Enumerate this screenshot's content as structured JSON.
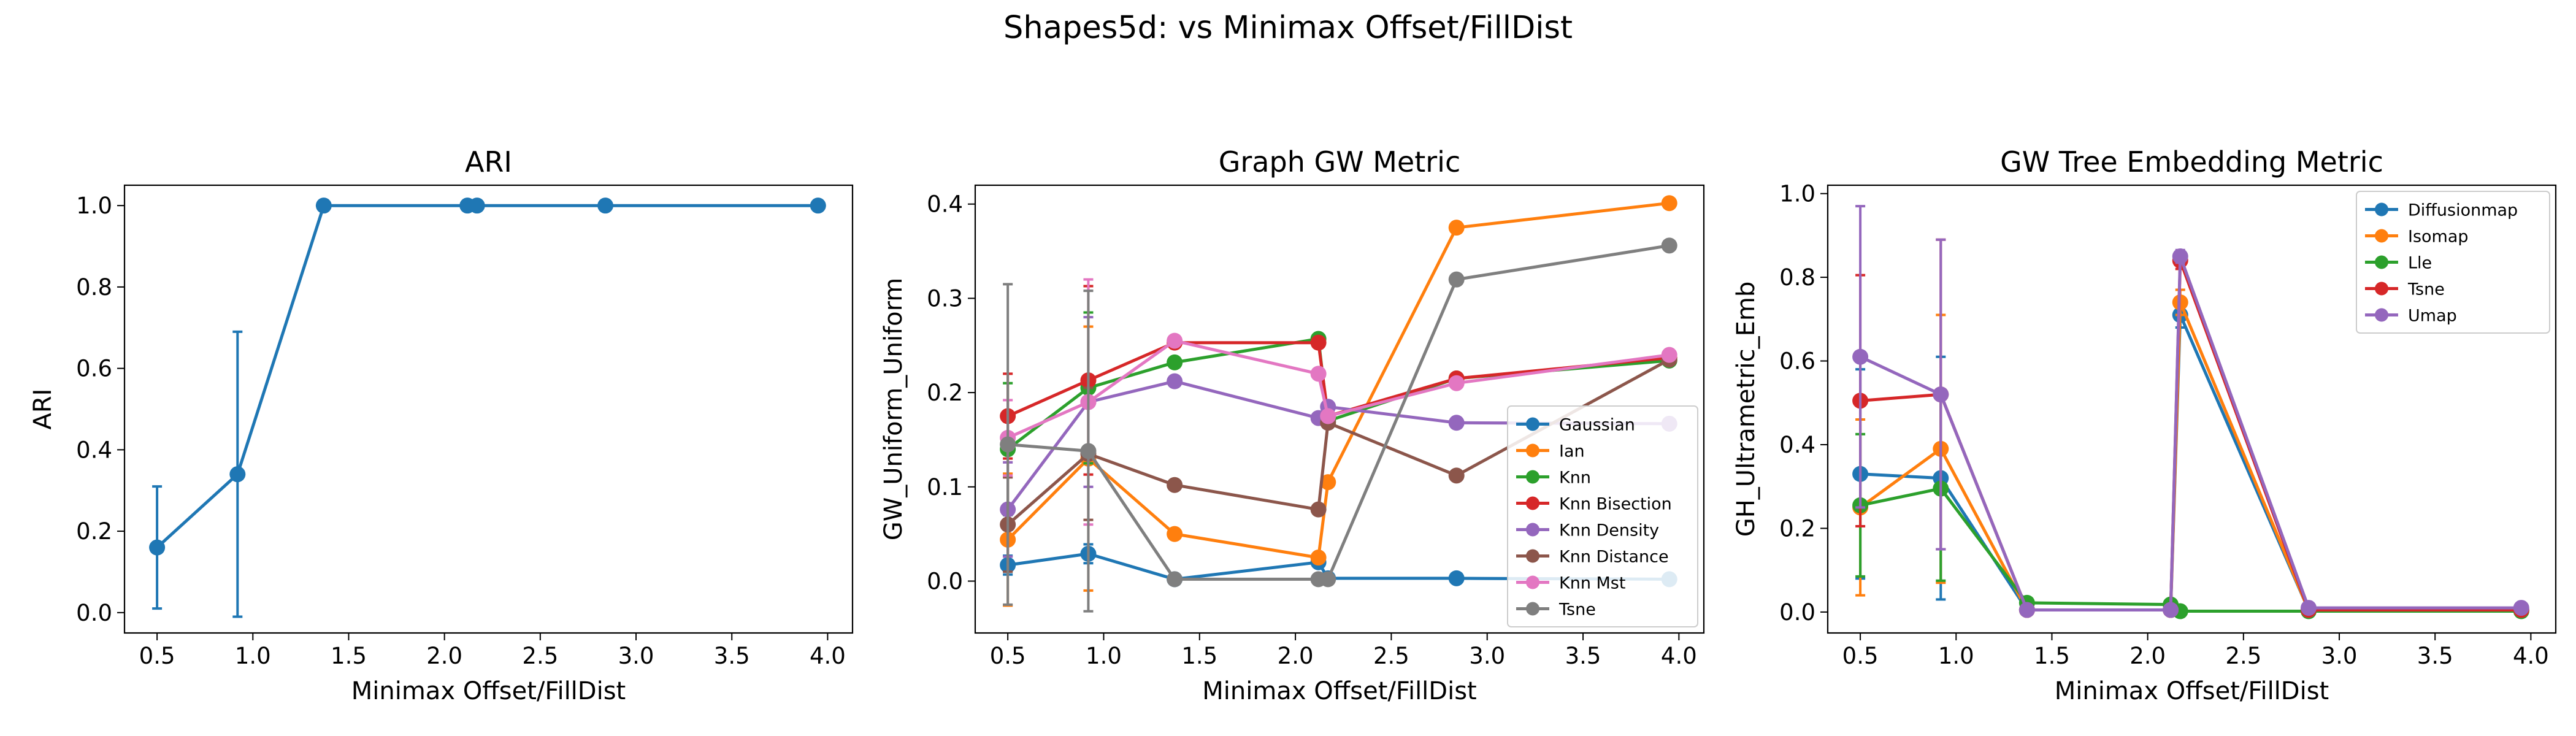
{
  "figure": {
    "suptitle": "Shapes5d: vs Minimax Offset/FillDist"
  },
  "chart_data": [
    {
      "type": "line",
      "title": "ARI",
      "xlabel": "Minimax Offset/FillDist",
      "ylabel": "ARI",
      "xlim": [
        0.33,
        4.13
      ],
      "ylim": [
        -0.05,
        1.05
      ],
      "xticks": [
        0.5,
        1.0,
        1.5,
        2.0,
        2.5,
        3.0,
        3.5,
        4.0
      ],
      "yticks": [
        0.0,
        0.2,
        0.4,
        0.6,
        0.8,
        1.0
      ],
      "xtick_labels": [
        "0.5",
        "1.0",
        "1.5",
        "2.0",
        "2.5",
        "3.0",
        "3.5",
        "4.0"
      ],
      "ytick_labels": [
        "0.0",
        "0.2",
        "0.4",
        "0.6",
        "0.8",
        "1.0"
      ],
      "legend": null,
      "series": [
        {
          "color": "#1f77b4",
          "x": [
            0.5,
            0.92,
            1.37,
            2.12,
            2.17,
            2.84,
            3.95
          ],
          "y": [
            0.16,
            0.34,
            1.0,
            1.0,
            1.0,
            1.0,
            1.0
          ],
          "err": [
            0.15,
            0.35,
            0,
            0,
            0,
            0,
            0
          ]
        }
      ]
    },
    {
      "type": "line",
      "title": "Graph GW Metric",
      "xlabel": "Minimax Offset/FillDist",
      "ylabel": "GW_Uniform_Uniform",
      "xlim": [
        0.33,
        4.13
      ],
      "ylim": [
        -0.055,
        0.42
      ],
      "xticks": [
        0.5,
        1.0,
        1.5,
        2.0,
        2.5,
        3.0,
        3.5,
        4.0
      ],
      "yticks": [
        0.0,
        0.1,
        0.2,
        0.3,
        0.4
      ],
      "xtick_labels": [
        "0.5",
        "1.0",
        "1.5",
        "2.0",
        "2.5",
        "3.0",
        "3.5",
        "4.0"
      ],
      "ytick_labels": [
        "0.0",
        "0.1",
        "0.2",
        "0.3",
        "0.4"
      ],
      "legend": "lower-right",
      "series": [
        {
          "name": "Gaussian",
          "color": "#1f77b4",
          "x": [
            0.5,
            0.92,
            1.37,
            2.12,
            2.17,
            2.84,
            3.95
          ],
          "y": [
            0.017,
            0.029,
            0.002,
            0.02,
            0.003,
            0.003,
            0.002
          ],
          "err": [
            0.01,
            0.01,
            0,
            0,
            0,
            0,
            0
          ]
        },
        {
          "name": "Ian",
          "color": "#ff7f0e",
          "x": [
            0.5,
            0.92,
            1.37,
            2.12,
            2.17,
            2.84,
            3.95
          ],
          "y": [
            0.044,
            0.13,
            0.05,
            0.025,
            0.105,
            0.375,
            0.401
          ],
          "err": [
            0.07,
            0.14,
            0,
            0,
            0,
            0,
            0
          ]
        },
        {
          "name": "Knn",
          "color": "#2ca02c",
          "x": [
            0.5,
            0.92,
            1.37,
            2.12,
            2.17,
            2.84,
            3.95
          ],
          "y": [
            0.14,
            0.205,
            0.232,
            0.257,
            0.17,
            0.215,
            0.234
          ],
          "err": [
            0.07,
            0.08,
            0,
            0,
            0,
            0,
            0
          ]
        },
        {
          "name": "Knn Bisection",
          "color": "#d62728",
          "x": [
            0.5,
            0.92,
            1.37,
            2.12,
            2.17,
            2.84,
            3.95
          ],
          "y": [
            0.175,
            0.213,
            0.253,
            0.253,
            0.175,
            0.215,
            0.237
          ],
          "err": [
            0.045,
            0.1,
            0,
            0,
            0,
            0,
            0
          ]
        },
        {
          "name": "Knn Density",
          "color": "#9467bd",
          "x": [
            0.5,
            0.92,
            1.37,
            2.12,
            2.17,
            2.84,
            3.95
          ],
          "y": [
            0.076,
            0.19,
            0.212,
            0.173,
            0.185,
            0.168,
            0.167
          ],
          "err": [
            0.05,
            0.09,
            0,
            0,
            0,
            0,
            0
          ]
        },
        {
          "name": "Knn Distance",
          "color": "#8c564b",
          "x": [
            0.5,
            0.92,
            1.37,
            2.12,
            2.17,
            2.84,
            3.95
          ],
          "y": [
            0.06,
            0.135,
            0.102,
            0.076,
            0.168,
            0.112,
            0.235
          ],
          "err": [
            0.05,
            0.07,
            0,
            0,
            0,
            0,
            0
          ]
        },
        {
          "name": "Knn Mst",
          "color": "#e377c2",
          "x": [
            0.5,
            0.92,
            1.37,
            2.12,
            2.17,
            2.84,
            3.95
          ],
          "y": [
            0.152,
            0.19,
            0.255,
            0.22,
            0.175,
            0.21,
            0.24
          ],
          "err": [
            0.04,
            0.13,
            0,
            0,
            0,
            0,
            0
          ]
        },
        {
          "name": "Tsne",
          "color": "#7f7f7f",
          "x": [
            0.5,
            0.92,
            1.37,
            2.12,
            2.17,
            2.84,
            3.95
          ],
          "y": [
            0.145,
            0.138,
            0.002,
            0.002,
            0.002,
            0.32,
            0.356
          ],
          "err": [
            0.17,
            0.17,
            0,
            0,
            0,
            0,
            0
          ]
        }
      ]
    },
    {
      "type": "line",
      "title": "GW Tree Embedding Metric",
      "xlabel": "Minimax Offset/FillDist",
      "ylabel": "GH_Ultrametric_Emb",
      "xlim": [
        0.33,
        4.13
      ],
      "ylim": [
        -0.05,
        1.02
      ],
      "xticks": [
        0.5,
        1.0,
        1.5,
        2.0,
        2.5,
        3.0,
        3.5,
        4.0
      ],
      "yticks": [
        0.0,
        0.2,
        0.4,
        0.6,
        0.8,
        1.0
      ],
      "xtick_labels": [
        "0.5",
        "1.0",
        "1.5",
        "2.0",
        "2.5",
        "3.0",
        "3.5",
        "4.0"
      ],
      "ytick_labels": [
        "0.0",
        "0.2",
        "0.4",
        "0.6",
        "0.8",
        "1.0"
      ],
      "legend": "upper-right",
      "series": [
        {
          "name": "Diffusionmap",
          "color": "#1f77b4",
          "x": [
            0.5,
            0.92,
            1.37,
            2.12,
            2.17,
            2.84,
            3.95
          ],
          "y": [
            0.33,
            0.32,
            0.005,
            0.005,
            0.71,
            0.005,
            0.005
          ],
          "err": [
            0.25,
            0.29,
            0,
            0,
            0.03,
            0,
            0
          ]
        },
        {
          "name": "Isomap",
          "color": "#ff7f0e",
          "x": [
            0.5,
            0.92,
            1.37,
            2.12,
            2.17,
            2.84,
            3.95
          ],
          "y": [
            0.25,
            0.39,
            0.005,
            0.005,
            0.74,
            0.005,
            0.005
          ],
          "err": [
            0.21,
            0.32,
            0,
            0,
            0.03,
            0,
            0
          ]
        },
        {
          "name": "Lle",
          "color": "#2ca02c",
          "x": [
            0.5,
            0.92,
            1.37,
            2.12,
            2.17,
            2.84,
            3.95
          ],
          "y": [
            0.255,
            0.295,
            0.022,
            0.018,
            0.002,
            0.002,
            0.002
          ],
          "err": [
            0.17,
            0.22,
            0,
            0,
            0,
            0,
            0
          ]
        },
        {
          "name": "Tsne",
          "color": "#d62728",
          "x": [
            0.5,
            0.92,
            1.37,
            2.12,
            2.17,
            2.84,
            3.95
          ],
          "y": [
            0.505,
            0.52,
            0.005,
            0.005,
            0.84,
            0.005,
            0.005
          ],
          "err": [
            0.3,
            0.37,
            0,
            0,
            0.02,
            0,
            0
          ]
        },
        {
          "name": "Umap",
          "color": "#9467bd",
          "x": [
            0.5,
            0.92,
            1.37,
            2.12,
            2.17,
            2.84,
            3.95
          ],
          "y": [
            0.61,
            0.52,
            0.005,
            0.005,
            0.85,
            0.01,
            0.01
          ],
          "err": [
            0.36,
            0.37,
            0,
            0,
            0.015,
            0,
            0
          ]
        }
      ]
    }
  ]
}
